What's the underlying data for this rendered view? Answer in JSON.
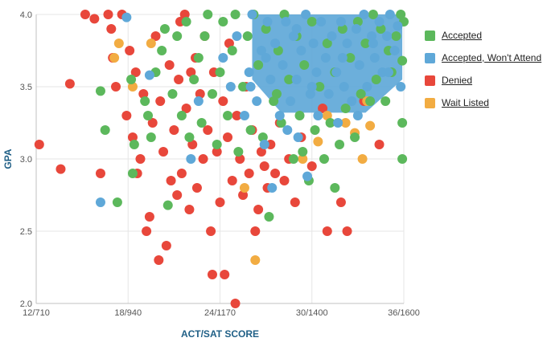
{
  "chart_data": {
    "type": "scatter",
    "xlabel": "ACT/SAT SCORE",
    "ylabel": "GPA",
    "x_ticks": [
      "12/710",
      "18/940",
      "24/1170",
      "30/1400",
      "36/1600"
    ],
    "x_tick_values": [
      12,
      18,
      24,
      30,
      36
    ],
    "xlim": [
      12,
      36
    ],
    "y_ticks": [
      "2.0",
      "2.5",
      "3.0",
      "3.5",
      "4.0"
    ],
    "y_tick_values": [
      2.0,
      2.5,
      3.0,
      3.5,
      4.0
    ],
    "ylim": [
      2.0,
      4.0
    ],
    "grid": true,
    "legend_position": "right",
    "series": [
      {
        "name": "Accepted",
        "color": "#5cb85c",
        "points": [
          [
            16.2,
            3.47
          ],
          [
            16.5,
            3.2
          ],
          [
            17.3,
            2.7
          ],
          [
            18.2,
            3.55
          ],
          [
            18.3,
            2.9
          ],
          [
            18.4,
            3.1
          ],
          [
            19.1,
            3.4
          ],
          [
            19.3,
            3.3
          ],
          [
            19.5,
            3.15
          ],
          [
            19.8,
            3.6
          ],
          [
            20.2,
            3.75
          ],
          [
            20.4,
            3.9
          ],
          [
            20.6,
            2.68
          ],
          [
            20.9,
            3.45
          ],
          [
            21.2,
            3.85
          ],
          [
            21.5,
            3.3
          ],
          [
            21.8,
            3.95
          ],
          [
            22.0,
            3.15
          ],
          [
            22.3,
            3.55
          ],
          [
            22.6,
            3.7
          ],
          [
            22.8,
            3.25
          ],
          [
            23.0,
            3.85
          ],
          [
            23.2,
            4.0
          ],
          [
            23.5,
            3.45
          ],
          [
            23.8,
            3.1
          ],
          [
            24.0,
            3.6
          ],
          [
            24.2,
            3.95
          ],
          [
            24.5,
            3.3
          ],
          [
            24.8,
            3.75
          ],
          [
            25.0,
            4.0
          ],
          [
            25.2,
            3.05
          ],
          [
            25.5,
            3.5
          ],
          [
            25.8,
            3.85
          ],
          [
            26.0,
            3.2
          ],
          [
            26.2,
            4.0
          ],
          [
            26.5,
            3.65
          ],
          [
            26.8,
            3.15
          ],
          [
            27.0,
            3.9
          ],
          [
            27.2,
            2.6
          ],
          [
            27.5,
            3.4
          ],
          [
            27.8,
            3.75
          ],
          [
            28.0,
            3.25
          ],
          [
            28.2,
            4.0
          ],
          [
            28.5,
            3.55
          ],
          [
            28.8,
            3.0
          ],
          [
            29.0,
            3.85
          ],
          [
            29.2,
            3.3
          ],
          [
            29.5,
            3.65
          ],
          [
            29.8,
            2.85
          ],
          [
            30.0,
            3.95
          ],
          [
            30.2,
            3.2
          ],
          [
            30.5,
            3.5
          ],
          [
            30.8,
            3.0
          ],
          [
            31.0,
            3.8
          ],
          [
            31.2,
            3.25
          ],
          [
            31.5,
            2.8
          ],
          [
            31.5,
            3.6
          ],
          [
            31.8,
            3.1
          ],
          [
            32.0,
            3.9
          ],
          [
            32.2,
            3.35
          ],
          [
            32.5,
            3.7
          ],
          [
            32.8,
            3.15
          ],
          [
            33.0,
            3.95
          ],
          [
            33.2,
            3.45
          ],
          [
            33.5,
            3.8
          ],
          [
            33.8,
            3.4
          ],
          [
            34.0,
            4.0
          ],
          [
            34.2,
            3.55
          ],
          [
            34.5,
            3.9
          ],
          [
            34.8,
            3.4
          ],
          [
            35.0,
            3.75
          ],
          [
            35.2,
            3.6
          ],
          [
            35.5,
            3.85
          ],
          [
            35.8,
            4.0
          ],
          [
            35.9,
            3.68
          ],
          [
            35.9,
            3.25
          ],
          [
            35.9,
            3.0
          ],
          [
            36.0,
            3.95
          ],
          [
            27.7,
            3.45
          ],
          [
            29.4,
            3.05
          ]
        ]
      },
      {
        "name": "Accepted, Won't Attend",
        "color": "#5fa8d8",
        "points": [
          [
            16.2,
            2.7
          ],
          [
            17.9,
            3.98
          ],
          [
            19.4,
            3.58
          ],
          [
            22.1,
            3.0
          ],
          [
            22.6,
            3.4
          ],
          [
            24.2,
            3.7
          ],
          [
            24.7,
            3.5
          ],
          [
            25.1,
            3.85
          ],
          [
            25.6,
            3.3
          ],
          [
            25.9,
            3.6
          ],
          [
            26.1,
            4.0
          ],
          [
            26.4,
            3.4
          ],
          [
            26.7,
            3.75
          ],
          [
            26.9,
            3.1
          ],
          [
            27.1,
            3.95
          ],
          [
            27.3,
            3.55
          ],
          [
            27.4,
            2.8
          ],
          [
            27.6,
            3.8
          ],
          [
            27.9,
            3.3
          ],
          [
            28.1,
            3.65
          ],
          [
            28.3,
            3.95
          ],
          [
            28.6,
            3.4
          ],
          [
            28.8,
            3.85
          ],
          [
            29.0,
            3.55
          ],
          [
            29.1,
            3.15
          ],
          [
            29.3,
            3.75
          ],
          [
            29.6,
            4.0
          ],
          [
            29.7,
            2.88
          ],
          [
            29.9,
            3.45
          ],
          [
            30.1,
            3.8
          ],
          [
            30.3,
            3.6
          ],
          [
            30.4,
            3.3
          ],
          [
            30.6,
            3.95
          ],
          [
            30.9,
            3.7
          ],
          [
            31.1,
            3.45
          ],
          [
            31.3,
            3.85
          ],
          [
            31.6,
            3.6
          ],
          [
            31.9,
            3.95
          ],
          [
            32.1,
            3.5
          ],
          [
            32.3,
            3.8
          ],
          [
            32.6,
            3.4
          ],
          [
            32.9,
            3.9
          ],
          [
            33.1,
            3.65
          ],
          [
            33.4,
            4.0
          ],
          [
            33.6,
            3.5
          ],
          [
            33.9,
            3.85
          ],
          [
            34.1,
            3.7
          ],
          [
            34.4,
            3.95
          ],
          [
            34.6,
            3.6
          ],
          [
            34.9,
            3.85
          ],
          [
            35.1,
            4.0
          ],
          [
            35.4,
            3.75
          ],
          [
            35.6,
            3.92
          ],
          [
            35.8,
            3.5
          ],
          [
            28.4,
            3.2
          ],
          [
            31.7,
            3.25
          ],
          [
            26.0,
            3.5
          ],
          [
            30.0,
            3.5
          ],
          [
            32.0,
            3.7
          ],
          [
            33.0,
            3.3
          ],
          [
            34.0,
            3.8
          ],
          [
            35.0,
            3.6
          ],
          [
            27.0,
            3.7
          ],
          [
            29.0,
            3.9
          ]
        ]
      },
      {
        "name": "Denied",
        "color": "#e8473b",
        "points": [
          [
            12.2,
            3.1
          ],
          [
            13.6,
            2.93
          ],
          [
            14.2,
            3.52
          ],
          [
            15.2,
            4.0
          ],
          [
            15.8,
            3.97
          ],
          [
            16.2,
            2.9
          ],
          [
            16.7,
            4.0
          ],
          [
            16.9,
            3.9
          ],
          [
            17.0,
            3.7
          ],
          [
            17.2,
            3.5
          ],
          [
            17.6,
            4.0
          ],
          [
            17.9,
            3.3
          ],
          [
            18.1,
            3.75
          ],
          [
            18.3,
            3.15
          ],
          [
            18.5,
            3.6
          ],
          [
            18.6,
            2.9
          ],
          [
            18.8,
            3.0
          ],
          [
            19.0,
            3.45
          ],
          [
            19.2,
            2.5
          ],
          [
            19.4,
            2.6
          ],
          [
            19.6,
            3.25
          ],
          [
            19.8,
            3.85
          ],
          [
            20.0,
            2.3
          ],
          [
            20.1,
            3.4
          ],
          [
            20.3,
            3.05
          ],
          [
            20.5,
            2.4
          ],
          [
            20.7,
            3.65
          ],
          [
            20.8,
            2.85
          ],
          [
            21.0,
            3.2
          ],
          [
            21.2,
            2.75
          ],
          [
            21.3,
            3.55
          ],
          [
            21.5,
            2.9
          ],
          [
            21.7,
            4.0
          ],
          [
            21.8,
            3.35
          ],
          [
            22.0,
            2.65
          ],
          [
            22.2,
            3.1
          ],
          [
            22.4,
            3.7
          ],
          [
            22.5,
            2.8
          ],
          [
            22.7,
            3.45
          ],
          [
            22.9,
            3.0
          ],
          [
            23.0,
            3.85
          ],
          [
            23.2,
            3.2
          ],
          [
            23.4,
            2.5
          ],
          [
            23.5,
            2.2
          ],
          [
            23.6,
            3.6
          ],
          [
            23.8,
            3.05
          ],
          [
            24.0,
            2.7
          ],
          [
            24.2,
            3.4
          ],
          [
            24.3,
            2.2
          ],
          [
            24.5,
            3.15
          ],
          [
            24.6,
            3.8
          ],
          [
            24.8,
            2.85
          ],
          [
            25.0,
            2.0
          ],
          [
            25.1,
            3.3
          ],
          [
            25.3,
            3.0
          ],
          [
            25.5,
            2.75
          ],
          [
            25.7,
            3.5
          ],
          [
            25.9,
            2.9
          ],
          [
            26.1,
            3.2
          ],
          [
            26.3,
            2.5
          ],
          [
            26.5,
            2.65
          ],
          [
            26.7,
            3.05
          ],
          [
            26.9,
            2.95
          ],
          [
            27.1,
            2.8
          ],
          [
            27.3,
            3.1
          ],
          [
            27.6,
            2.9
          ],
          [
            27.9,
            3.25
          ],
          [
            28.2,
            2.85
          ],
          [
            28.5,
            3.0
          ],
          [
            28.9,
            2.7
          ],
          [
            29.3,
            3.15
          ],
          [
            30.0,
            2.95
          ],
          [
            30.7,
            3.35
          ],
          [
            31.0,
            2.5
          ],
          [
            31.9,
            2.7
          ],
          [
            32.3,
            2.5
          ],
          [
            33.4,
            3.4
          ],
          [
            34.4,
            3.1
          ],
          [
            21.4,
            3.95
          ],
          [
            22.1,
            3.6
          ]
        ]
      },
      {
        "name": "Wait Listed",
        "color": "#f2ac42",
        "points": [
          [
            17.1,
            3.7
          ],
          [
            17.4,
            3.8
          ],
          [
            18.3,
            3.5
          ],
          [
            19.5,
            3.8
          ],
          [
            25.6,
            2.8
          ],
          [
            26.3,
            2.3
          ],
          [
            29.4,
            3.0
          ],
          [
            31.0,
            3.3
          ],
          [
            32.2,
            3.25
          ],
          [
            32.8,
            3.18
          ],
          [
            33.3,
            3.0
          ],
          [
            33.6,
            3.4
          ],
          [
            33.8,
            3.23
          ],
          [
            30.4,
            3.12
          ]
        ]
      }
    ]
  }
}
